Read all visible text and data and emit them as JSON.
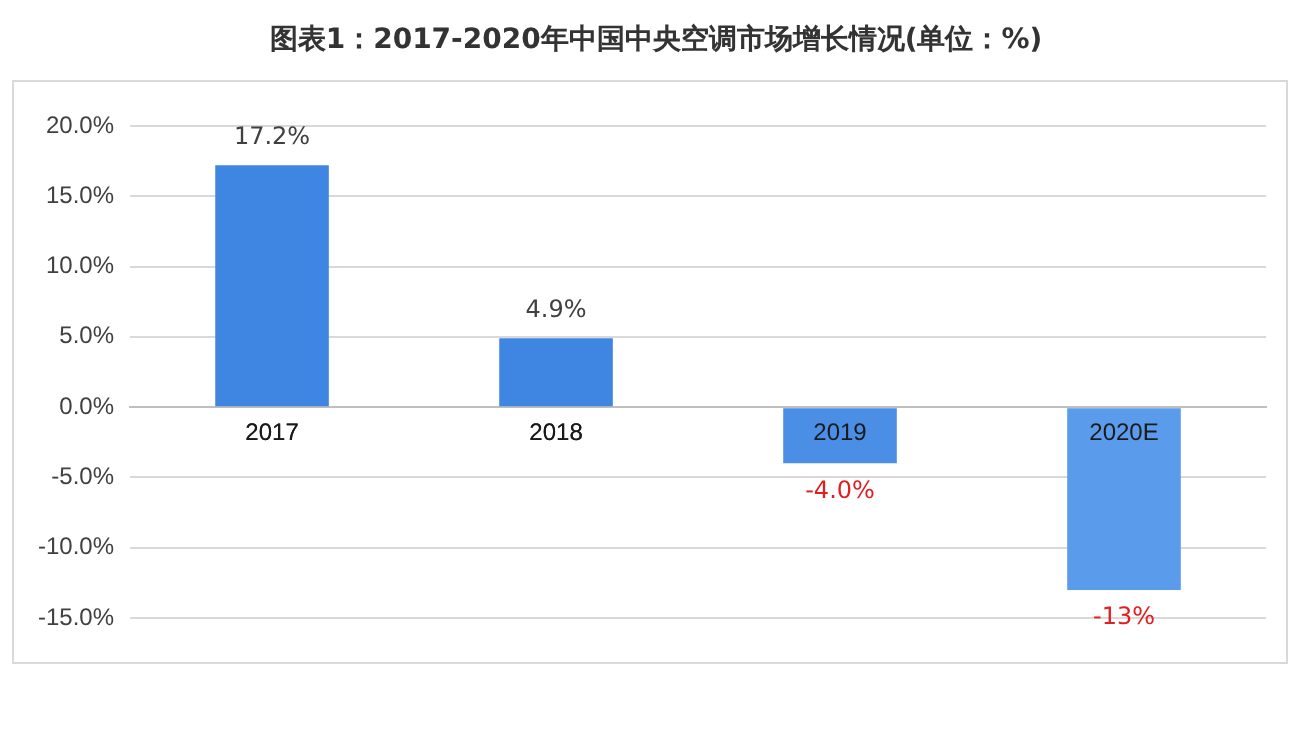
{
  "chart_data": {
    "type": "bar",
    "title": "图表1：2017-2020年中国中央空调市场增长情况(单位：%)",
    "categories": [
      "2017",
      "2018",
      "2019",
      "2020E"
    ],
    "values": [
      17.2,
      4.9,
      -4.0,
      -13
    ],
    "colors": [
      "#3f86e2",
      "#3f86e2",
      "#4a8ee6",
      "#5b9beb"
    ],
    "value_labels": [
      "17.2%",
      "4.9%",
      "-4.0%",
      "-13%"
    ],
    "ylim": [
      -15,
      20
    ],
    "yticks": [
      {
        "value": -15,
        "label": "-15.0%"
      },
      {
        "value": -10,
        "label": "-10.0%"
      },
      {
        "value": -5,
        "label": "-5.0%"
      },
      {
        "value": 0,
        "label": "0.0%"
      },
      {
        "value": 5,
        "label": "5.0%"
      },
      {
        "value": 10,
        "label": "10.0%"
      },
      {
        "value": 15,
        "label": "15.0%"
      },
      {
        "value": 20,
        "label": "20.0%"
      }
    ],
    "grid": "y"
  }
}
